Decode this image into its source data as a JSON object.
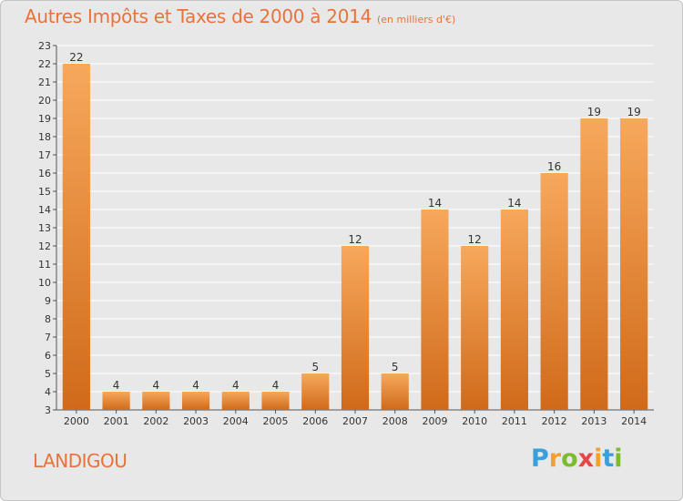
{
  "title": "Autres Impôts et Taxes de 2000 à 2014",
  "title_unit": "(en milliers d'€)",
  "commune": "LANDIGOU",
  "brand": {
    "letters": [
      "P",
      "r",
      "o",
      "x",
      "i",
      "t",
      "i"
    ],
    "colors": [
      "#3aa0dc",
      "#f2a12c",
      "#7cbb2e",
      "#e84545",
      "#f2a12c",
      "#3aa0dc",
      "#7cbb2e"
    ]
  },
  "colors": {
    "bar_top": "#f7a85c",
    "bar_bottom": "#d06a1a",
    "text_accent": "#e8733a",
    "plot_background": "#e8e8e8",
    "grid": "#ffffff"
  },
  "chart_data": {
    "type": "bar",
    "categories": [
      "2000",
      "2001",
      "2002",
      "2003",
      "2004",
      "2005",
      "2006",
      "2007",
      "2008",
      "2009",
      "2010",
      "2011",
      "2012",
      "2013",
      "2014"
    ],
    "values": [
      22,
      4,
      4,
      4,
      4,
      4,
      5,
      12,
      5,
      14,
      12,
      14,
      16,
      19,
      19
    ],
    "data_labels": [
      "22",
      "4",
      "4",
      "4",
      "4",
      "4",
      "5",
      "12",
      "5",
      "14",
      "12",
      "14",
      "16",
      "19",
      "19"
    ],
    "ylim": [
      3,
      23
    ],
    "yticks": [
      "3",
      "4",
      "5",
      "6",
      "7",
      "8",
      "9",
      "10",
      "11",
      "12",
      "13",
      "14",
      "15",
      "16",
      "17",
      "18",
      "19",
      "20",
      "21",
      "22",
      "23"
    ],
    "grid": true,
    "xlabel": "",
    "ylabel": ""
  }
}
